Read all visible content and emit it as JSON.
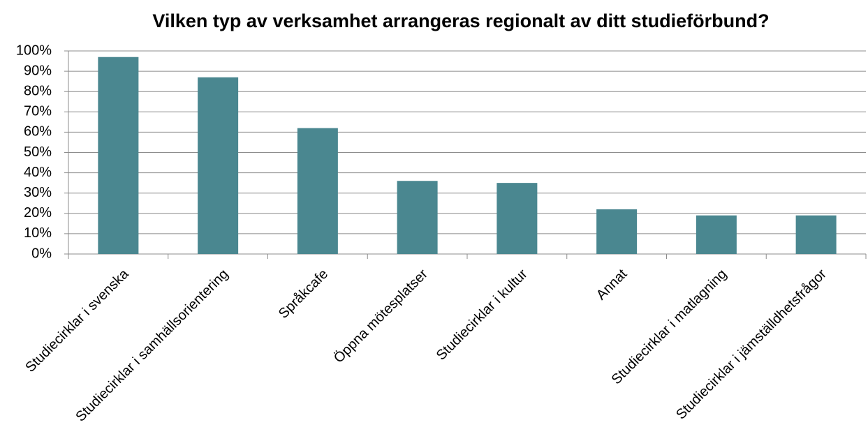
{
  "chart_data": {
    "type": "bar",
    "title": "Vilken typ av verksamhet arrangeras regionalt av ditt studieförbund?",
    "categories": [
      "Studiecirklar i svenska",
      "Studiecirklar i samhällsorientering",
      "Språkcafe",
      "Öppna mötesplatser",
      "Studiecirklar i kultur",
      "Annat",
      "Studiecirklar i matlagning",
      "Studiecirklar i jämställdhetsfrågor"
    ],
    "values": [
      97,
      87,
      62,
      36,
      35,
      22,
      19,
      19
    ],
    "color": "#4a8790",
    "ylim": [
      0,
      100
    ],
    "yticks": [
      {
        "value": 0,
        "label": "0%"
      },
      {
        "value": 10,
        "label": "10%"
      },
      {
        "value": 20,
        "label": "20%"
      },
      {
        "value": 30,
        "label": "30%"
      },
      {
        "value": 40,
        "label": "40%"
      },
      {
        "value": 50,
        "label": "50%"
      },
      {
        "value": 60,
        "label": "60%"
      },
      {
        "value": 70,
        "label": "70%"
      },
      {
        "value": 80,
        "label": "80%"
      },
      {
        "value": 90,
        "label": "90%"
      },
      {
        "value": 100,
        "label": "100%"
      }
    ],
    "grid": true
  }
}
